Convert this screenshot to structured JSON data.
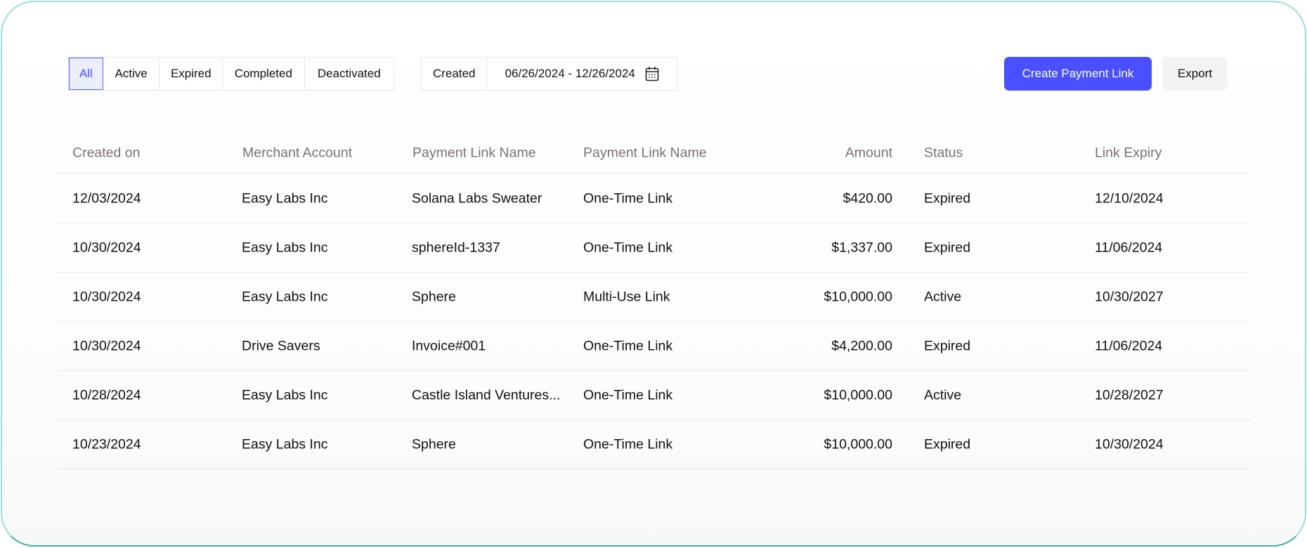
{
  "filters": {
    "tabs": [
      "All",
      "Active",
      "Expired",
      "Completed",
      "Deactivated"
    ],
    "selected": "All"
  },
  "date_filter": {
    "label": "Created",
    "range": "06/26/2024 - 12/26/2024",
    "icon": "calendar-icon"
  },
  "actions": {
    "create": "Create Payment Link",
    "export": "Export"
  },
  "colors": {
    "accent": "#4a50ff",
    "header_text": "#7a716c",
    "border": "#3fb1a4"
  },
  "table": {
    "headers": [
      "Created on",
      "Merchant Account",
      "Payment Link Name",
      "Payment Link Name",
      "Amount",
      "Status",
      "Link Expiry"
    ],
    "rows": [
      [
        "12/03/2024",
        "Easy Labs Inc",
        "Solana Labs Sweater",
        "One-Time Link",
        "$420.00",
        "Expired",
        "12/10/2024"
      ],
      [
        "10/30/2024",
        "Easy Labs Inc",
        "sphereId-1337",
        "One-Time Link",
        "$1,337.00",
        "Expired",
        "11/06/2024"
      ],
      [
        "10/30/2024",
        "Easy Labs Inc",
        "Sphere",
        "Multi-Use Link",
        "$10,000.00",
        "Active",
        "10/30/2027"
      ],
      [
        "10/30/2024",
        "Drive Savers",
        "Invoice#001",
        "One-Time Link",
        "$4,200.00",
        "Expired",
        "11/06/2024"
      ],
      [
        "10/28/2024",
        "Easy Labs Inc",
        "Castle Island Ventures...",
        "One-Time Link",
        "$10,000.00",
        "Active",
        "10/28/2027"
      ],
      [
        "10/23/2024",
        "Easy Labs Inc",
        "Sphere",
        "One-Time Link",
        "$10,000.00",
        "Expired",
        "10/30/2024"
      ]
    ]
  }
}
